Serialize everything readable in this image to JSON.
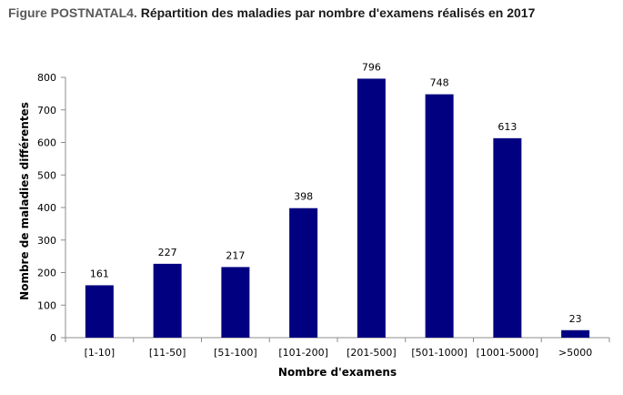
{
  "header": {
    "title_prefix": "Figure POSTNATAL4.",
    "title": "Répartition des maladies par nombre d'examens réalisés en 2017"
  },
  "chart_data": {
    "type": "bar",
    "title": "Répartition des maladies par nombre d'examens réalisés en 2017",
    "xlabel": "Nombre d'examens",
    "ylabel": "Nombre de maladies différentes",
    "categories": [
      "[1-10]",
      "[11-50]",
      "[51-100]",
      "[101-200]",
      "[201-500]",
      "[501-1000]",
      "[1001-5000]",
      ">5000"
    ],
    "values": [
      161,
      227,
      217,
      398,
      796,
      748,
      613,
      23
    ],
    "ylim": [
      0,
      800
    ],
    "yticks": [
      0,
      100,
      200,
      300,
      400,
      500,
      600,
      700,
      800
    ],
    "data_labels": true,
    "legend": "none",
    "grid": false,
    "bar_color": "#000080"
  }
}
